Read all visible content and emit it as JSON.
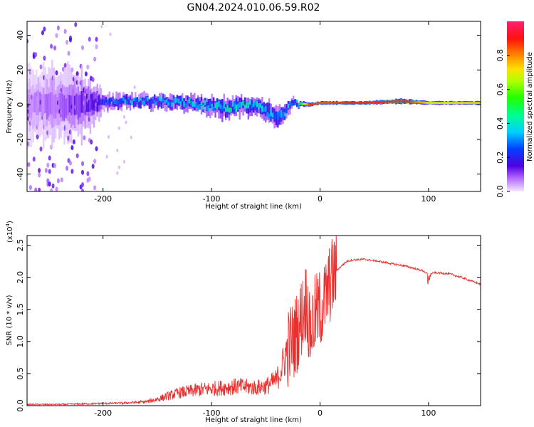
{
  "title": "GN04.2024.010.06.59.R02",
  "chart_data": [
    {
      "type": "heatmap",
      "xlabel": "Height of straight line (km)",
      "ylabel": "Frequency (Hz)",
      "xlim": [
        -270,
        148
      ],
      "ylim": [
        -50,
        48
      ],
      "xticks": [
        -200,
        -100,
        0,
        100
      ],
      "yticks": [
        -40,
        -20,
        0,
        20,
        40
      ],
      "xtick_labels": [
        "-200",
        "-100",
        "0",
        "100"
      ],
      "ytick_labels": [
        "-40",
        "-20",
        "0",
        "20",
        "40"
      ],
      "colorbar": {
        "label": "Normalized spectral amplitude",
        "range": [
          0,
          1
        ],
        "ticks": [
          0.0,
          0.2,
          0.4,
          0.6,
          0.8
        ],
        "tick_labels": [
          "0.0",
          "0.2",
          "0.4",
          "0.6",
          "0.8"
        ]
      },
      "profile": [
        {
          "x": -270,
          "amp": 0.05,
          "center": 0,
          "spread": 45
        },
        {
          "x": -220,
          "amp": 0.12,
          "center": 0,
          "spread": 40
        },
        {
          "x": -200,
          "amp": 0.2,
          "center": 1,
          "spread": 10
        },
        {
          "x": -180,
          "amp": 0.28,
          "center": 2,
          "spread": 8
        },
        {
          "x": -150,
          "amp": 0.3,
          "center": 2,
          "spread": 8
        },
        {
          "x": -120,
          "amp": 0.32,
          "center": 1,
          "spread": 9
        },
        {
          "x": -90,
          "amp": 0.35,
          "center": -2,
          "spread": 12
        },
        {
          "x": -60,
          "amp": 0.35,
          "center": 0,
          "spread": 10
        },
        {
          "x": -40,
          "amp": 0.3,
          "center": -8,
          "spread": 14
        },
        {
          "x": -25,
          "amp": 0.3,
          "center": 1,
          "spread": 5
        },
        {
          "x": -10,
          "amp": 0.9,
          "center": 0,
          "spread": 2
        },
        {
          "x": 0,
          "amp": 0.85,
          "center": 1,
          "spread": 2
        },
        {
          "x": 40,
          "amp": 0.92,
          "center": 1,
          "spread": 2
        },
        {
          "x": 75,
          "amp": 0.95,
          "center": 2,
          "spread": 3
        },
        {
          "x": 100,
          "amp": 0.7,
          "center": 1,
          "spread": 2
        },
        {
          "x": 148,
          "amp": 0.75,
          "center": 1,
          "spread": 2
        }
      ]
    },
    {
      "type": "line",
      "xlabel": "Height of straight line (km)",
      "ylabel": "SNR (10 * v/v)",
      "scale_label": "(x10",
      "scale_exponent": "4",
      "scale_close": ")",
      "xlim": [
        -270,
        148
      ],
      "ylim": [
        0,
        2.65
      ],
      "xticks": [
        -200,
        -100,
        0,
        100
      ],
      "yticks": [
        0.0,
        0.5,
        1.0,
        1.5,
        2.0,
        2.5
      ],
      "xtick_labels": [
        "-200",
        "-100",
        "0",
        "100"
      ],
      "ytick_labels": [
        "0.0",
        "0.5",
        "1.0",
        "1.5",
        "2.0",
        "2.5"
      ],
      "color": "#e8312f",
      "series": [
        {
          "name": "SNR",
          "x": [
            -270,
            -240,
            -210,
            -180,
            -160,
            -150,
            -130,
            -110,
            -90,
            -75,
            -60,
            -50,
            -40,
            -35,
            -30,
            -25,
            -20,
            -15,
            -12,
            -10,
            -5,
            0,
            5,
            10,
            15,
            20,
            25,
            30,
            40,
            50,
            60,
            80,
            95,
            100,
            105,
            115,
            120,
            130,
            148
          ],
          "y": [
            0.02,
            0.02,
            0.03,
            0.04,
            0.06,
            0.1,
            0.2,
            0.25,
            0.28,
            0.3,
            0.28,
            0.3,
            0.4,
            0.6,
            0.9,
            1.0,
            1.2,
            1.5,
            1.7,
            1.1,
            1.4,
            1.5,
            1.65,
            1.95,
            2.1,
            2.18,
            2.25,
            2.27,
            2.28,
            2.26,
            2.23,
            2.17,
            2.1,
            2.04,
            2.07,
            2.06,
            2.05,
            2.0,
            1.89
          ]
        }
      ]
    }
  ]
}
